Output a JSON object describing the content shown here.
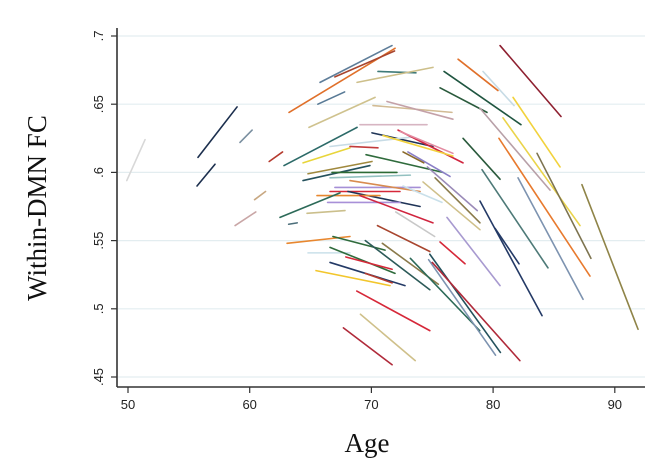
{
  "chart_data": {
    "type": "line",
    "title": "",
    "xlabel": "Age",
    "ylabel": "Within-DMN FC",
    "xlim": [
      49.2,
      92.3
    ],
    "ylim": [
      0.442,
      0.705
    ],
    "x_ticks": [
      50,
      60,
      70,
      80,
      90
    ],
    "x_tick_labels": [
      "50",
      "60",
      "70",
      "80",
      "90"
    ],
    "y_ticks": [
      0.45,
      0.5,
      0.55,
      0.6,
      0.65,
      0.7
    ],
    "y_tick_labels": [
      ".45",
      ".5",
      ".55",
      ".6",
      ".65",
      ".7"
    ],
    "grid": true,
    "legend": "none",
    "grid_color": "#e3edf0",
    "series": [
      {
        "x": [
          49.9,
          51.4
        ],
        "y": [
          0.594,
          0.624
        ],
        "color": "#d8d8d8"
      },
      {
        "x": [
          55.75,
          58.96
        ],
        "y": [
          0.611,
          0.648
        ],
        "color": "#1c2f4e"
      },
      {
        "x": [
          55.67,
          57.15
        ],
        "y": [
          0.59,
          0.606
        ],
        "color": "#1c2f4e"
      },
      {
        "x": [
          59.2,
          60.2
        ],
        "y": [
          0.622,
          0.631
        ],
        "color": "#7a8fa0"
      },
      {
        "x": [
          58.8,
          60.5
        ],
        "y": [
          0.561,
          0.571
        ],
        "color": "#c9a6a6"
      },
      {
        "x": [
          60.4,
          61.3
        ],
        "y": [
          0.58,
          0.586
        ],
        "color": "#c8a882"
      },
      {
        "x": [
          61.6,
          62.7
        ],
        "y": [
          0.608,
          0.615
        ],
        "color": "#b53a2e"
      },
      {
        "x": [
          63.2,
          63.9
        ],
        "y": [
          0.562,
          0.563
        ],
        "color": "#4b6e7a"
      },
      {
        "x": [
          63.23,
          71.94
        ],
        "y": [
          0.644,
          0.691
        ],
        "color": "#e0702a"
      },
      {
        "x": [
          65.78,
          71.69
        ],
        "y": [
          0.666,
          0.693
        ],
        "color": "#5e7d99"
      },
      {
        "x": [
          67.0,
          71.9
        ],
        "y": [
          0.67,
          0.689
        ],
        "color": "#a8452e"
      },
      {
        "x": [
          70.54,
          73.66
        ],
        "y": [
          0.674,
          0.673
        ],
        "color": "#3f7a78"
      },
      {
        "x": [
          68.82,
          75.06
        ],
        "y": [
          0.666,
          0.677
        ],
        "color": "#cdbf8a"
      },
      {
        "x": [
          65.6,
          67.8
        ],
        "y": [
          0.65,
          0.659
        ],
        "color": "#587a96"
      },
      {
        "x": [
          64.87,
          70.3
        ],
        "y": [
          0.633,
          0.655
        ],
        "color": "#cfc28e"
      },
      {
        "x": [
          70.13,
          76.62
        ],
        "y": [
          0.649,
          0.644
        ],
        "color": "#d2bb94"
      },
      {
        "x": [
          71.28,
          76.7
        ],
        "y": [
          0.652,
          0.639
        ],
        "color": "#c4a1a8"
      },
      {
        "x": [
          69.06,
          74.57
        ],
        "y": [
          0.635,
          0.635
        ],
        "color": "#d7b5c2"
      },
      {
        "x": [
          62.82,
          68.82
        ],
        "y": [
          0.605,
          0.633
        ],
        "color": "#2c6a68"
      },
      {
        "x": [
          64.38,
          68.24
        ],
        "y": [
          0.607,
          0.618
        ],
        "color": "#e8d53a"
      },
      {
        "x": [
          70.05,
          75.06
        ],
        "y": [
          0.629,
          0.619
        ],
        "color": "#1f3457"
      },
      {
        "x": [
          66.6,
          73.4
        ],
        "y": [
          0.619,
          0.626
        ],
        "color": "#c7dbe5"
      },
      {
        "x": [
          72.19,
          77.53
        ],
        "y": [
          0.631,
          0.607
        ],
        "color": "#d0253f"
      },
      {
        "x": [
          72.35,
          76.7
        ],
        "y": [
          0.63,
          0.614
        ],
        "color": "#e38aa0"
      },
      {
        "x": [
          70.95,
          76.7
        ],
        "y": [
          0.627,
          0.612
        ],
        "color": "#f2d23c"
      },
      {
        "x": [
          68.24,
          70.54
        ],
        "y": [
          0.619,
          0.618
        ],
        "color": "#c23b3b"
      },
      {
        "x": [
          69.56,
          75.88
        ],
        "y": [
          0.613,
          0.6
        ],
        "color": "#2f6b3c"
      },
      {
        "x": [
          73.0,
          76.46
        ],
        "y": [
          0.615,
          0.597
        ],
        "color": "#8a7fc6"
      },
      {
        "x": [
          72.6,
          74.3
        ],
        "y": [
          0.615,
          0.607
        ],
        "color": "#8a6a2a"
      },
      {
        "x": [
          64.79,
          70.05
        ],
        "y": [
          0.599,
          0.608
        ],
        "color": "#a0893e"
      },
      {
        "x": [
          64.38,
          69.88
        ],
        "y": [
          0.594,
          0.605
        ],
        "color": "#24515c"
      },
      {
        "x": [
          66.76,
          72.1
        ],
        "y": [
          0.6,
          0.6
        ],
        "color": "#2d6b35"
      },
      {
        "x": [
          66.6,
          73.2
        ],
        "y": [
          0.596,
          0.598
        ],
        "color": "#93c1c0"
      },
      {
        "x": [
          67.0,
          74.0
        ],
        "y": [
          0.589,
          0.589
        ],
        "color": "#a58fd6"
      },
      {
        "x": [
          68.24,
          74.0
        ],
        "y": [
          0.594,
          0.586
        ],
        "color": "#d88b50"
      },
      {
        "x": [
          66.6,
          72.35
        ],
        "y": [
          0.586,
          0.586
        ],
        "color": "#d62839"
      },
      {
        "x": [
          68.08,
          74.0
        ],
        "y": [
          0.586,
          0.575
        ],
        "color": "#1f3457"
      },
      {
        "x": [
          65.53,
          70.7
        ],
        "y": [
          0.583,
          0.583
        ],
        "color": "#e8872f"
      },
      {
        "x": [
          66.4,
          72.35
        ],
        "y": [
          0.578,
          0.578
        ],
        "color": "#a890d8"
      },
      {
        "x": [
          69.06,
          75.06
        ],
        "y": [
          0.583,
          0.563
        ],
        "color": "#d0253f"
      },
      {
        "x": [
          62.49,
          67.42
        ],
        "y": [
          0.567,
          0.585
        ],
        "color": "#2c6a58"
      },
      {
        "x": [
          64.71,
          67.83
        ],
        "y": [
          0.57,
          0.572
        ],
        "color": "#cbbf8c"
      },
      {
        "x": [
          72.6,
          75.8
        ],
        "y": [
          0.59,
          0.578
        ],
        "color": "#c9e0ea"
      },
      {
        "x": [
          74.24,
          78.92
        ],
        "y": [
          0.593,
          0.558
        ],
        "color": "#cfc08a"
      },
      {
        "x": [
          75.23,
          78.92
        ],
        "y": [
          0.596,
          0.563
        ],
        "color": "#8a7a4a"
      },
      {
        "x": [
          74.6,
          78.7
        ],
        "y": [
          0.604,
          0.572
        ],
        "color": "#9a8ab8"
      },
      {
        "x": [
          80.57,
          85.58
        ],
        "y": [
          0.693,
          0.641
        ],
        "color": "#8e2030"
      },
      {
        "x": [
          77.12,
          80.4
        ],
        "y": [
          0.683,
          0.66
        ],
        "color": "#e0702a"
      },
      {
        "x": [
          79.17,
          81.72
        ],
        "y": [
          0.674,
          0.649
        ],
        "color": "#c7dbe5"
      },
      {
        "x": [
          75.97,
          82.29
        ],
        "y": [
          0.674,
          0.635
        ],
        "color": "#1f5540"
      },
      {
        "x": [
          75.64,
          79.5
        ],
        "y": [
          0.662,
          0.644
        ],
        "color": "#2a5a3c"
      },
      {
        "x": [
          81.64,
          85.5
        ],
        "y": [
          0.655,
          0.604
        ],
        "color": "#f2d23c"
      },
      {
        "x": [
          80.81,
          87.14
        ],
        "y": [
          0.64,
          0.561
        ],
        "color": "#ead44a"
      },
      {
        "x": [
          78.92,
          84.68
        ],
        "y": [
          0.647,
          0.587
        ],
        "color": "#b8a0a8"
      },
      {
        "x": [
          80.48,
          87.96
        ],
        "y": [
          0.625,
          0.524
        ],
        "color": "#e87a2e"
      },
      {
        "x": [
          83.61,
          88.04
        ],
        "y": [
          0.614,
          0.537
        ],
        "color": "#7d7450"
      },
      {
        "x": [
          77.53,
          80.57
        ],
        "y": [
          0.625,
          0.595
        ],
        "color": "#2a5a3c"
      },
      {
        "x": [
          79.09,
          84.51
        ],
        "y": [
          0.602,
          0.53
        ],
        "color": "#4e7a78"
      },
      {
        "x": [
          82.05,
          87.39
        ],
        "y": [
          0.596,
          0.507
        ],
        "color": "#7d93b0"
      },
      {
        "x": [
          78.92,
          84.02
        ],
        "y": [
          0.579,
          0.495
        ],
        "color": "#243a66"
      },
      {
        "x": [
          80.16,
          82.13
        ],
        "y": [
          0.559,
          0.533
        ],
        "color": "#243a66"
      },
      {
        "x": [
          87.3,
          91.91
        ],
        "y": [
          0.591,
          0.485
        ],
        "color": "#8f8448"
      },
      {
        "x": [
          76.21,
          80.57
        ],
        "y": [
          0.567,
          0.517
        ],
        "color": "#a89ad0"
      },
      {
        "x": [
          75.64,
          77.69
        ],
        "y": [
          0.549,
          0.533
        ],
        "color": "#d62839"
      },
      {
        "x": [
          63.07,
          68.24
        ],
        "y": [
          0.548,
          0.553
        ],
        "color": "#e8872f"
      },
      {
        "x": [
          64.79,
          68.24
        ],
        "y": [
          0.541,
          0.541
        ],
        "color": "#c9e0ea"
      },
      {
        "x": [
          66.6,
          71.94
        ],
        "y": [
          0.545,
          0.526
        ],
        "color": "#2f6b3c"
      },
      {
        "x": [
          66.6,
          72.76
        ],
        "y": [
          0.534,
          0.517
        ],
        "color": "#243a66"
      },
      {
        "x": [
          65.45,
          71.53
        ],
        "y": [
          0.528,
          0.517
        ],
        "color": "#f2c62c"
      },
      {
        "x": [
          66.84,
          71.12
        ],
        "y": [
          0.553,
          0.543
        ],
        "color": "#2f6b3c"
      },
      {
        "x": [
          67.9,
          71.7
        ],
        "y": [
          0.538,
          0.529
        ],
        "color": "#d62839"
      },
      {
        "x": [
          69.5,
          71.7
        ],
        "y": [
          0.526,
          0.519
        ],
        "color": "#b53a2e"
      },
      {
        "x": [
          68.8,
          74.8
        ],
        "y": [
          0.513,
          0.484
        ],
        "color": "#d62839"
      },
      {
        "x": [
          67.7,
          71.7
        ],
        "y": [
          0.486,
          0.459
        ],
        "color": "#b02a3a"
      },
      {
        "x": [
          69.1,
          73.6
        ],
        "y": [
          0.496,
          0.462
        ],
        "color": "#cfc08a"
      },
      {
        "x": [
          70.5,
          74.8
        ],
        "y": [
          0.561,
          0.542
        ],
        "color": "#a8452e"
      },
      {
        "x": [
          69.5,
          74.8
        ],
        "y": [
          0.55,
          0.514
        ],
        "color": "#2c5a58"
      },
      {
        "x": [
          70.9,
          75.5
        ],
        "y": [
          0.548,
          0.518
        ],
        "color": "#8a7a4a"
      },
      {
        "x": [
          73.2,
          78.9
        ],
        "y": [
          0.537,
          0.484
        ],
        "color": "#2c6a58"
      },
      {
        "x": [
          74.7,
          80.2
        ],
        "y": [
          0.536,
          0.466
        ],
        "color": "#7d93b0"
      },
      {
        "x": [
          74.8,
          80.6
        ],
        "y": [
          0.54,
          0.468
        ],
        "color": "#24515c"
      },
      {
        "x": [
          75.0,
          82.2
        ],
        "y": [
          0.534,
          0.462
        ],
        "color": "#b02a3a"
      },
      {
        "x": [
          72.0,
          75.2
        ],
        "y": [
          0.571,
          0.553
        ],
        "color": "#c8c8c8"
      }
    ]
  }
}
